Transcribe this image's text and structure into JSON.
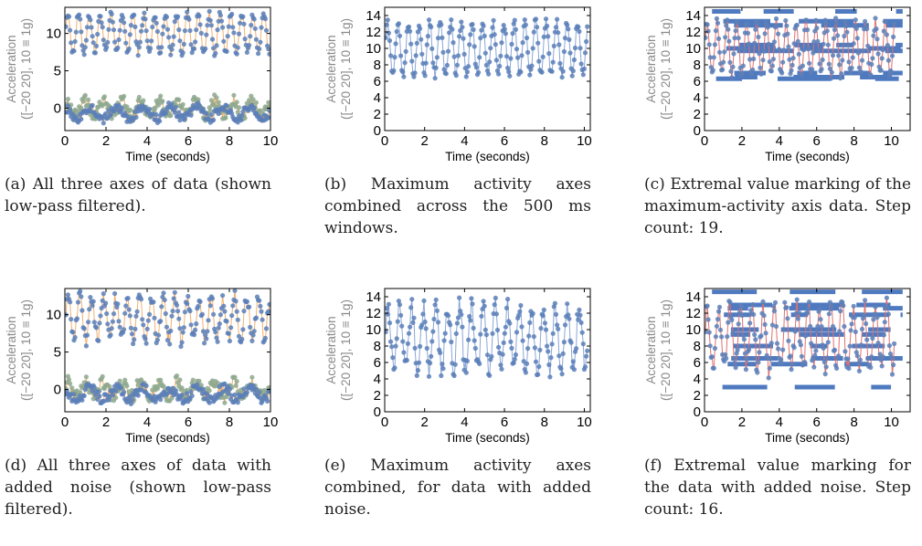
{
  "colors": {
    "points_blue": "#5b7fb8",
    "points_green": "#8ea98f",
    "line_orange": "#f0b070",
    "line_blue": "#8aa6d6",
    "line_red": "#e07070",
    "marker_blue": "#4f7ac0",
    "frame": "#000000",
    "ylabel_gray": "#8a8a8a"
  },
  "panels": [
    {
      "id": "a",
      "caption_tag": "(a)",
      "caption_text": "All three axes of data (shown low-pass filtered)."
    },
    {
      "id": "b",
      "caption_tag": "(b)",
      "caption_text": "Maximum activity axes combined across the 500 ms windows."
    },
    {
      "id": "c",
      "caption_tag": "(c)",
      "caption_text": "Extremal value marking of the maximum-activity axis data. Step count: 19."
    },
    {
      "id": "d",
      "caption_tag": "(d)",
      "caption_text": "All three axes of data with added noise (shown low-pass filtered)."
    },
    {
      "id": "e",
      "caption_tag": "(e)",
      "caption_text": "Maximum activity axes combined, for data with added noise."
    },
    {
      "id": "f",
      "caption_tag": "(f)",
      "caption_text": "Extremal value marking for the data with added noise. Step count: 16."
    }
  ],
  "chart_data": [
    {
      "panel": "a",
      "type": "scatter",
      "xlabel": "Time (seconds)",
      "ylabel": "Acceleration ([−20 20], 10 ≡ 1g)",
      "xlim": [
        0,
        10
      ],
      "ylim": [
        -3,
        13.5
      ],
      "xticks": [
        0,
        2,
        4,
        6,
        8,
        10
      ],
      "yticks": [
        0,
        5,
        10
      ],
      "series": [
        {
          "kind": "osc",
          "center": 10,
          "amp": 2.5,
          "period": 0.53,
          "color": "points_blue",
          "line": "line_orange",
          "noise": 0.5
        },
        {
          "kind": "noisy",
          "center": 0,
          "amp": 1.0,
          "period": 0.9,
          "color": "points_green",
          "line": "line_orange",
          "noise": 0.8
        },
        {
          "kind": "noisy",
          "center": -0.6,
          "amp": 0.8,
          "period": 1.3,
          "color": "points_blue",
          "line": "line_orange",
          "noise": 0.6
        }
      ]
    },
    {
      "panel": "b",
      "type": "line",
      "xlabel": "Time (seconds)",
      "ylabel": "Acceleration ([−20 20], 10 ≡ 1g)",
      "xlim": [
        0,
        10.3
      ],
      "ylim": [
        0,
        15
      ],
      "xticks": [
        0,
        2,
        4,
        6,
        8,
        10
      ],
      "yticks": [
        0,
        2,
        4,
        6,
        8,
        10,
        12,
        14
      ],
      "series": [
        {
          "kind": "osc",
          "center": 10,
          "amp": 3.2,
          "period": 0.53,
          "color": "points_blue",
          "line": "line_blue",
          "noise": 0.5
        }
      ]
    },
    {
      "panel": "c",
      "type": "line",
      "xlabel": "Time (seconds)",
      "ylabel": "Acceleration ([−20 20], 10 ≡ 1g)",
      "xlim": [
        0,
        11
      ],
      "ylim": [
        0,
        15
      ],
      "xticks": [
        0,
        2,
        4,
        6,
        8,
        10
      ],
      "yticks": [
        0,
        2,
        4,
        6,
        8,
        10,
        12,
        14
      ],
      "markers": [
        14.5,
        13.3,
        12.8,
        10.4,
        10.0,
        9.7,
        7.0,
        6.5,
        6.3
      ],
      "series": [
        {
          "kind": "osc",
          "center": 10,
          "amp": 3.2,
          "period": 0.53,
          "color": "points_blue",
          "line": "line_red",
          "noise": 0.5
        }
      ]
    },
    {
      "panel": "d",
      "type": "scatter",
      "xlabel": "Time (seconds)",
      "ylabel": "Acceleration ([−20 20], 10 ≡ 1g)",
      "xlim": [
        0,
        10
      ],
      "ylim": [
        -3,
        13.5
      ],
      "xticks": [
        0,
        2,
        4,
        6,
        8,
        10
      ],
      "yticks": [
        0,
        5,
        10
      ],
      "series": [
        {
          "kind": "osc",
          "center": 9.5,
          "amp": 2.8,
          "period": 0.58,
          "color": "points_blue",
          "line": "line_orange",
          "noise": 1.0
        },
        {
          "kind": "noisy",
          "center": 0,
          "amp": 1.0,
          "period": 0.9,
          "color": "points_green",
          "line": "line_orange",
          "noise": 0.9
        },
        {
          "kind": "noisy",
          "center": -0.6,
          "amp": 0.8,
          "period": 1.3,
          "color": "points_blue",
          "line": "line_orange",
          "noise": 0.7
        }
      ]
    },
    {
      "panel": "e",
      "type": "line",
      "xlabel": "Time (seconds)",
      "ylabel": "Acceleration ([−20 20], 10 ≡ 1g)",
      "xlim": [
        0,
        10.3
      ],
      "ylim": [
        0,
        15
      ],
      "xticks": [
        0,
        2,
        4,
        6,
        8,
        10
      ],
      "yticks": [
        0,
        2,
        4,
        6,
        8,
        10,
        12,
        14
      ],
      "series": [
        {
          "kind": "osc",
          "center": 9,
          "amp": 3.8,
          "period": 0.6,
          "color": "points_blue",
          "line": "line_blue",
          "noise": 1.2
        }
      ]
    },
    {
      "panel": "f",
      "type": "line",
      "xlabel": "Time (seconds)",
      "ylabel": "Acceleration ([−20 20], 10 ≡ 1g)",
      "xlim": [
        0,
        11
      ],
      "ylim": [
        0,
        15
      ],
      "xticks": [
        0,
        2,
        4,
        6,
        8,
        10
      ],
      "yticks": [
        0,
        2,
        4,
        6,
        8,
        10,
        12,
        14
      ],
      "markers": [
        14.6,
        13.0,
        12.6,
        11.8,
        10.0,
        9.4,
        8.0,
        6.5,
        5.8,
        3.0
      ],
      "series": [
        {
          "kind": "osc",
          "center": 9,
          "amp": 3.8,
          "period": 0.6,
          "color": "points_blue",
          "line": "line_red",
          "noise": 1.2
        }
      ]
    }
  ]
}
